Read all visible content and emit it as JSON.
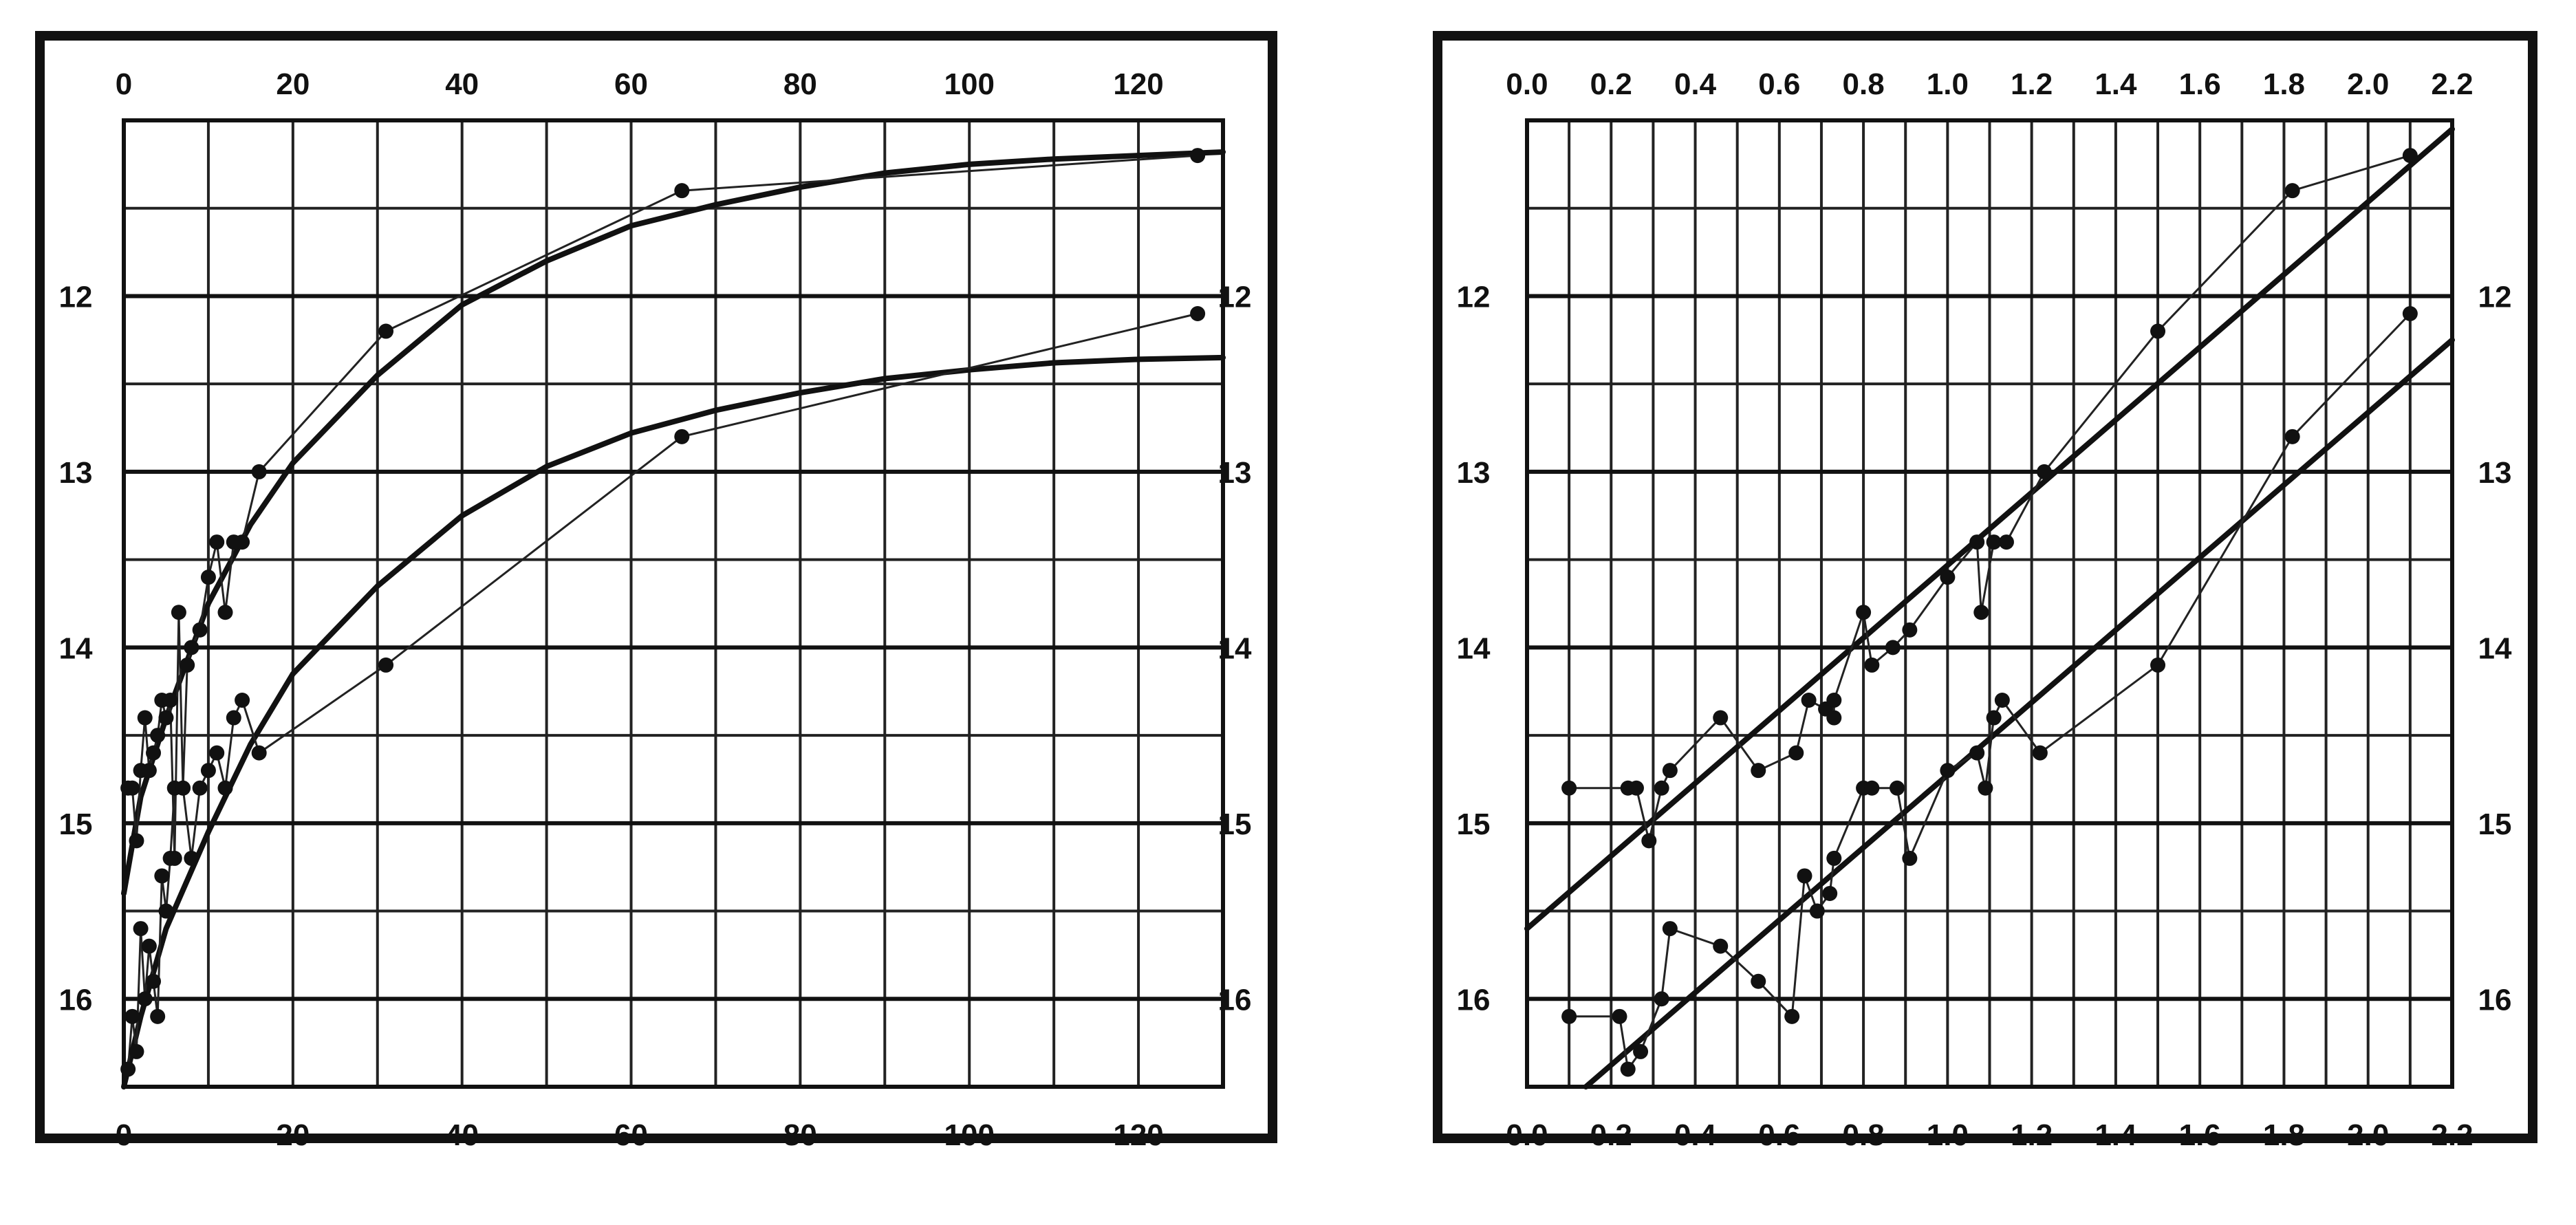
{
  "chart_data": [
    {
      "type": "scatter",
      "title": "",
      "xlabel": "",
      "ylabel": "",
      "xlim": [
        0,
        130
      ],
      "ylim": [
        16.5,
        11
      ],
      "y_inverted": true,
      "grid": true,
      "legend": "none",
      "x_ticks": [
        "0",
        "20",
        "40",
        "60",
        "80",
        "100",
        "120"
      ],
      "x_tick_values": [
        0,
        20,
        40,
        60,
        80,
        100,
        120
      ],
      "y_ticks": [
        "12",
        "13",
        "14",
        "15",
        "16"
      ],
      "y_tick_values": [
        12,
        13,
        14,
        15,
        16
      ],
      "series": [
        {
          "points": [
            [
              0.5,
              14.8
            ],
            [
              1,
              14.8
            ],
            [
              1.5,
              15.1
            ],
            [
              2,
              14.7
            ],
            [
              2.5,
              14.4
            ],
            [
              3,
              14.7
            ],
            [
              3.5,
              14.6
            ],
            [
              4,
              14.5
            ],
            [
              4.5,
              14.3
            ],
            [
              5,
              14.4
            ],
            [
              5.5,
              14.3
            ],
            [
              6,
              15.2
            ],
            [
              6.5,
              13.8
            ],
            [
              7,
              14.8
            ],
            [
              7.5,
              14.1
            ],
            [
              8,
              14.0
            ],
            [
              9,
              13.9
            ],
            [
              10,
              13.6
            ],
            [
              11,
              13.4
            ],
            [
              12,
              13.8
            ],
            [
              13,
              13.4
            ],
            [
              14,
              13.4
            ],
            [
              16,
              13.0
            ],
            [
              31,
              12.2
            ],
            [
              66,
              11.4
            ],
            [
              127,
              11.2
            ]
          ],
          "trend": [
            [
              0,
              15.4
            ],
            [
              2,
              14.85
            ],
            [
              5,
              14.4
            ],
            [
              10,
              13.75
            ],
            [
              15,
              13.3
            ],
            [
              20,
              12.95
            ],
            [
              30,
              12.45
            ],
            [
              40,
              12.05
            ],
            [
              50,
              11.8
            ],
            [
              60,
              11.6
            ],
            [
              70,
              11.48
            ],
            [
              80,
              11.38
            ],
            [
              90,
              11.3
            ],
            [
              100,
              11.25
            ],
            [
              110,
              11.22
            ],
            [
              120,
              11.2
            ],
            [
              130,
              11.18
            ]
          ]
        },
        {
          "points": [
            [
              0.5,
              16.4
            ],
            [
              1,
              16.1
            ],
            [
              1.5,
              16.3
            ],
            [
              2,
              15.6
            ],
            [
              2.5,
              16.0
            ],
            [
              3,
              15.7
            ],
            [
              3.5,
              15.9
            ],
            [
              4,
              16.1
            ],
            [
              4.5,
              15.3
            ],
            [
              5,
              15.5
            ],
            [
              5.5,
              15.2
            ],
            [
              6,
              14.8
            ],
            [
              7,
              14.8
            ],
            [
              8,
              15.2
            ],
            [
              9,
              14.8
            ],
            [
              10,
              14.7
            ],
            [
              11,
              14.6
            ],
            [
              12,
              14.8
            ],
            [
              13,
              14.4
            ],
            [
              14,
              14.3
            ],
            [
              16,
              14.6
            ],
            [
              31,
              14.1
            ],
            [
              66,
              12.8
            ],
            [
              127,
              12.1
            ]
          ],
          "trend": [
            [
              0,
              16.5
            ],
            [
              2,
              16.1
            ],
            [
              5,
              15.6
            ],
            [
              10,
              15.05
            ],
            [
              15,
              14.55
            ],
            [
              20,
              14.15
            ],
            [
              30,
              13.65
            ],
            [
              40,
              13.25
            ],
            [
              50,
              12.97
            ],
            [
              60,
              12.78
            ],
            [
              70,
              12.65
            ],
            [
              80,
              12.55
            ],
            [
              90,
              12.47
            ],
            [
              100,
              12.42
            ],
            [
              110,
              12.38
            ],
            [
              120,
              12.36
            ],
            [
              130,
              12.35
            ]
          ]
        }
      ]
    },
    {
      "type": "scatter",
      "title": "",
      "xlabel": "",
      "ylabel": "",
      "xlim": [
        0.0,
        2.2
      ],
      "ylim": [
        16.5,
        11
      ],
      "y_inverted": true,
      "grid": true,
      "legend": "none",
      "x_ticks": [
        "0.0",
        "0.2",
        "0.4",
        "0.6",
        "0.8",
        "1.0",
        "1.2",
        "1.4",
        "1.6",
        "1.8",
        "2.0",
        "2.2"
      ],
      "x_tick_values": [
        0.0,
        0.2,
        0.4,
        0.6,
        0.8,
        1.0,
        1.2,
        1.4,
        1.6,
        1.8,
        2.0,
        2.2
      ],
      "y_ticks": [
        "12",
        "13",
        "14",
        "15",
        "16"
      ],
      "y_tick_values": [
        12,
        13,
        14,
        15,
        16
      ],
      "series": [
        {
          "points": [
            [
              0.1,
              14.8
            ],
            [
              0.24,
              14.8
            ],
            [
              0.26,
              14.8
            ],
            [
              0.29,
              15.1
            ],
            [
              0.32,
              14.8
            ],
            [
              0.34,
              14.7
            ],
            [
              0.46,
              14.4
            ],
            [
              0.55,
              14.7
            ],
            [
              0.64,
              14.6
            ],
            [
              0.67,
              14.3
            ],
            [
              0.71,
              14.35
            ],
            [
              0.73,
              14.4
            ],
            [
              0.73,
              14.3
            ],
            [
              0.8,
              13.8
            ],
            [
              0.82,
              14.1
            ],
            [
              0.87,
              14.0
            ],
            [
              0.91,
              13.9
            ],
            [
              1.0,
              13.6
            ],
            [
              1.07,
              13.4
            ],
            [
              1.08,
              13.8
            ],
            [
              1.11,
              13.4
            ],
            [
              1.14,
              13.4
            ],
            [
              1.23,
              13.0
            ],
            [
              1.5,
              12.2
            ],
            [
              1.82,
              11.4
            ],
            [
              2.1,
              11.2
            ]
          ],
          "trend": [
            [
              0.0,
              15.6
            ],
            [
              2.2,
              11.05
            ]
          ]
        },
        {
          "points": [
            [
              0.1,
              16.1
            ],
            [
              0.22,
              16.1
            ],
            [
              0.24,
              16.4
            ],
            [
              0.27,
              16.3
            ],
            [
              0.32,
              16.0
            ],
            [
              0.34,
              15.6
            ],
            [
              0.46,
              15.7
            ],
            [
              0.55,
              15.9
            ],
            [
              0.63,
              16.1
            ],
            [
              0.66,
              15.3
            ],
            [
              0.69,
              15.5
            ],
            [
              0.72,
              15.4
            ],
            [
              0.73,
              15.2
            ],
            [
              0.8,
              14.8
            ],
            [
              0.82,
              14.8
            ],
            [
              0.88,
              14.8
            ],
            [
              0.91,
              15.2
            ],
            [
              1.0,
              14.7
            ],
            [
              1.07,
              14.6
            ],
            [
              1.09,
              14.8
            ],
            [
              1.11,
              14.4
            ],
            [
              1.13,
              14.3
            ],
            [
              1.22,
              14.6
            ],
            [
              1.5,
              14.1
            ],
            [
              1.82,
              12.8
            ],
            [
              2.1,
              12.1
            ]
          ],
          "trend": [
            [
              0.14,
              16.5
            ],
            [
              2.2,
              12.25
            ]
          ]
        }
      ]
    }
  ]
}
